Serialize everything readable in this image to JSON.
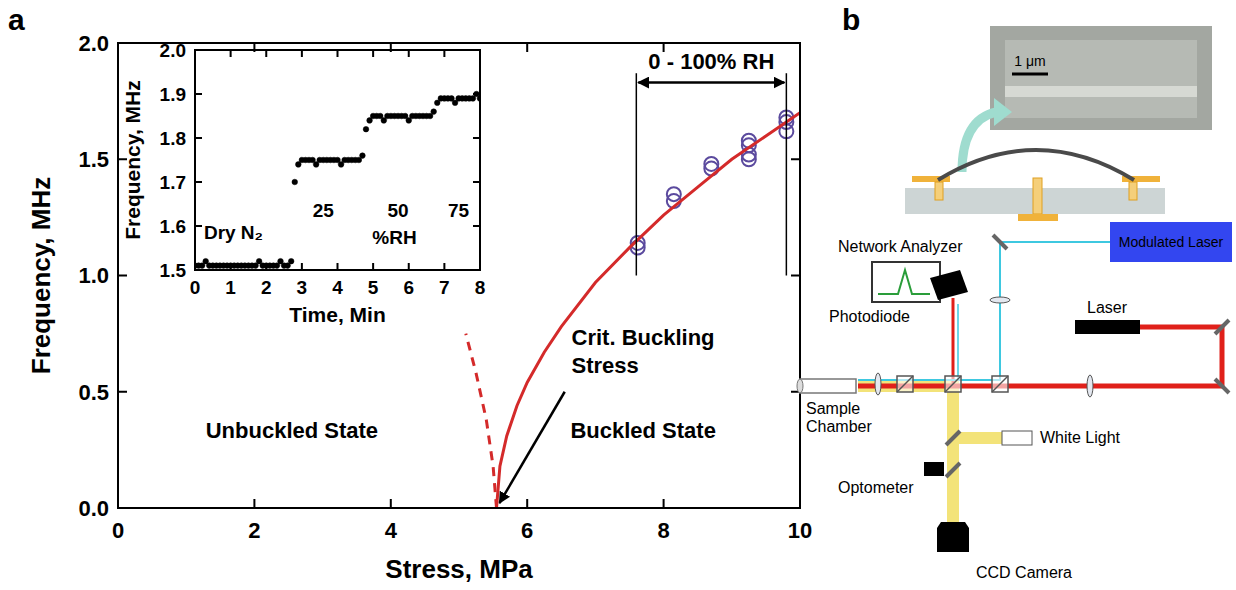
{
  "panels": [
    "a",
    "b"
  ],
  "chart_data": [
    {
      "type": "scatter",
      "x_label": "Stress, MPa",
      "y_label": "Frequency, MHz",
      "xlim": [
        0,
        10
      ],
      "ylim": [
        0,
        2
      ],
      "xticks": [
        0,
        2,
        4,
        6,
        8,
        10
      ],
      "yticks": [
        {
          "value": 0,
          "label": "0.0"
        },
        0.5,
        {
          "value": 1,
          "label": "1.0"
        },
        1.5,
        {
          "value": 2,
          "label": "2.0"
        }
      ],
      "grid": false,
      "series": [
        {
          "type": "scatter",
          "marker": "circle_open",
          "color": "#5b4a9e",
          "x": [
            7.62,
            7.62,
            8.15,
            8.15,
            8.7,
            8.7,
            9.25,
            9.25,
            9.25,
            9.25,
            9.8,
            9.8,
            9.8
          ],
          "values": [
            1.12,
            1.14,
            1.32,
            1.35,
            1.46,
            1.48,
            1.5,
            1.52,
            1.56,
            1.58,
            1.62,
            1.66,
            1.68
          ]
        },
        {
          "type": "line",
          "line_style": "solid",
          "color": "#d42a2a",
          "x": [
            5.55,
            5.6,
            5.7,
            5.85,
            6.0,
            6.25,
            6.5,
            7.0,
            7.5,
            8.0,
            8.5,
            9.0,
            9.5,
            10.0
          ],
          "values": [
            0,
            0.18,
            0.31,
            0.44,
            0.54,
            0.67,
            0.78,
            0.97,
            1.12,
            1.26,
            1.38,
            1.5,
            1.6,
            1.7
          ]
        },
        {
          "type": "line",
          "line_style": "dashed",
          "color": "#d42a2a",
          "x": [
            5.55,
            5.5,
            5.4,
            5.25,
            5.1
          ],
          "values": [
            0,
            0.18,
            0.38,
            0.58,
            0.75
          ]
        }
      ],
      "annotations": {
        "rh_range": {
          "text": "0 - 100% RH",
          "x": [
            7.6,
            9.8
          ]
        },
        "critical": {
          "text": "Crit. Buckling Stress",
          "x": 5.55,
          "y": 0
        },
        "unbuckled": "Unbuckled State",
        "buckled": "Buckled State"
      }
    },
    {
      "type": "scatter",
      "x_label": "Time, Min",
      "y_label": "Frequency, MHz",
      "xlim": [
        0,
        8
      ],
      "ylim": [
        1.5,
        2
      ],
      "xticks": [
        0,
        1,
        2,
        3,
        4,
        5,
        6,
        7,
        8
      ],
      "yticks": [
        1.5,
        1.6,
        1.7,
        1.8,
        1.9,
        {
          "value": 2,
          "label": "2.0"
        }
      ],
      "grid": false,
      "x": [
        0,
        0.1,
        0.2,
        0.3,
        0.4,
        0.5,
        0.6,
        0.7,
        0.8,
        0.9,
        1,
        1.1,
        1.2,
        1.3,
        1.4,
        1.5,
        1.6,
        1.7,
        1.8,
        1.9,
        2,
        2.1,
        2.2,
        2.3,
        2.4,
        2.5,
        2.6,
        2.7,
        2.8,
        2.9,
        3,
        3.1,
        3.2,
        3.3,
        3.4,
        3.5,
        3.6,
        3.7,
        3.8,
        3.9,
        4,
        4.1,
        4.2,
        4.3,
        4.4,
        4.5,
        4.6,
        4.7,
        4.8,
        4.9,
        5,
        5.1,
        5.2,
        5.3,
        5.4,
        5.5,
        5.6,
        5.7,
        5.8,
        5.9,
        6,
        6.1,
        6.2,
        6.3,
        6.4,
        6.5,
        6.6,
        6.7,
        6.8,
        6.9,
        7,
        7.1,
        7.2,
        7.3,
        7.4,
        7.5,
        7.6,
        7.7,
        7.8,
        7.9,
        8
      ],
      "series": [
        {
          "type": "scatter",
          "marker": "circle",
          "color": "#000000",
          "values": [
            1.51,
            1.51,
            1.51,
            1.52,
            1.51,
            1.51,
            1.51,
            1.51,
            1.51,
            1.51,
            1.51,
            1.51,
            1.51,
            1.51,
            1.51,
            1.51,
            1.51,
            1.51,
            1.52,
            1.51,
            1.51,
            1.51,
            1.51,
            1.51,
            1.52,
            1.51,
            1.51,
            1.52,
            1.7,
            1.74,
            1.75,
            1.75,
            1.75,
            1.75,
            1.74,
            1.75,
            1.75,
            1.75,
            1.75,
            1.75,
            1.75,
            1.74,
            1.75,
            1.75,
            1.75,
            1.75,
            1.75,
            1.76,
            1.82,
            1.84,
            1.85,
            1.85,
            1.85,
            1.84,
            1.85,
            1.85,
            1.85,
            1.85,
            1.85,
            1.85,
            1.84,
            1.85,
            1.85,
            1.85,
            1.85,
            1.85,
            1.85,
            1.86,
            1.88,
            1.89,
            1.89,
            1.89,
            1.89,
            1.88,
            1.89,
            1.89,
            1.89,
            1.89,
            1.89,
            1.9,
            1.89
          ]
        }
      ],
      "annotations": {
        "dry": "Dry N₂",
        "rh_levels": [
          25,
          50,
          75
        ],
        "rh_label": "%RH"
      }
    }
  ],
  "diagram": {
    "sem_scale_bar": "1 μm",
    "labels": {
      "network_analyzer": "Network Analyzer",
      "photodiode": "Photodiode",
      "modulated_laser": "Modulated Laser",
      "laser": "Laser",
      "sample_chamber": "Sample Chamber",
      "white_light": "White Light",
      "optometer": "Optometer",
      "ccd_camera": "CCD Camera"
    }
  }
}
